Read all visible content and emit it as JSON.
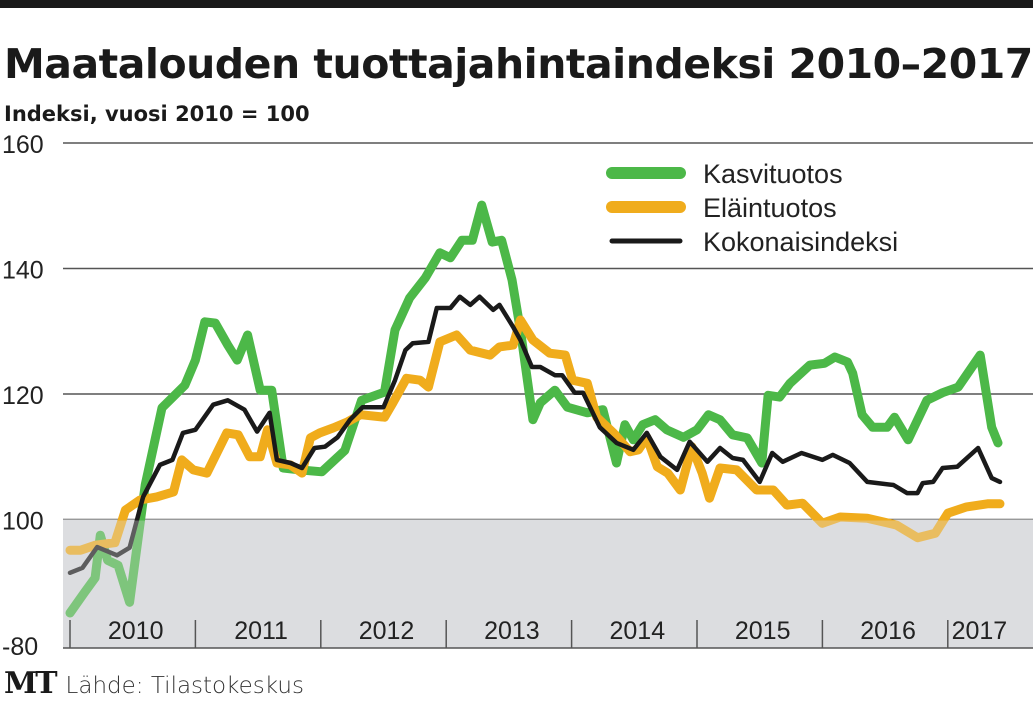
{
  "header": {
    "title": "Maatalouden tuottajahintaindeksi 2010–2017",
    "subtitle": "Indeksi, vuosi 2010 = 100"
  },
  "footer": {
    "logo": "MT",
    "source": "Lähde: Tilastokeskus"
  },
  "chart_data": {
    "type": "line",
    "title": "Maatalouden tuottajahintaindeksi 2010–2017",
    "subtitle": "Indeksi, vuosi 2010 = 100",
    "xlabel": "",
    "ylabel": "",
    "x_units": "months since January 2010",
    "xlim": [
      0,
      92
    ],
    "ylim": [
      80,
      160
    ],
    "yticks": [
      160,
      140,
      120,
      100
    ],
    "ytick_labels": [
      "160",
      "140",
      "120",
      "100"
    ],
    "ybottom_label": "-80",
    "year_labels": [
      "2010",
      "2011",
      "2012",
      "2013",
      "2014",
      "2015",
      "2016",
      "2017"
    ],
    "shaded_below": 100,
    "grid": true,
    "legend_position": "top-right",
    "colors": {
      "shade": "#dcdde0",
      "grid": "#555555"
    },
    "series": [
      {
        "name": "Kasvituotos",
        "color": "#4cb848",
        "points": [
          [
            0,
            85.1
          ],
          [
            1.4,
            88.4
          ],
          [
            2.4,
            90.7
          ],
          [
            2.9,
            97.5
          ],
          [
            3.6,
            93.5
          ],
          [
            4.6,
            92.7
          ],
          [
            5.7,
            86.8
          ],
          [
            7.2,
            105.5
          ],
          [
            8.8,
            117.8
          ],
          [
            11,
            121.4
          ],
          [
            12,
            125.4
          ],
          [
            12.9,
            131.5
          ],
          [
            13.9,
            131.3
          ],
          [
            15.1,
            127.8
          ],
          [
            16,
            125.4
          ],
          [
            17,
            129.4
          ],
          [
            18.2,
            120.6
          ],
          [
            19.3,
            120.6
          ],
          [
            20.4,
            108.2
          ],
          [
            22,
            107.9
          ],
          [
            24.1,
            107.6
          ],
          [
            26.3,
            111
          ],
          [
            27.9,
            119
          ],
          [
            30.1,
            120.3
          ],
          [
            31.1,
            130.2
          ],
          [
            32.5,
            135.3
          ],
          [
            34,
            138.5
          ],
          [
            35.4,
            142.5
          ],
          [
            36.4,
            141.7
          ],
          [
            37.5,
            144.5
          ],
          [
            38.5,
            144.5
          ],
          [
            39.4,
            150.1
          ],
          [
            40.4,
            144.2
          ],
          [
            41.3,
            144.5
          ],
          [
            42.3,
            138.2
          ],
          [
            43.1,
            130.2
          ],
          [
            44.3,
            115.9
          ],
          [
            45,
            118.6
          ],
          [
            46.4,
            120.6
          ],
          [
            47.6,
            117.9
          ],
          [
            49.5,
            117
          ],
          [
            51,
            117.5
          ],
          [
            52.3,
            109
          ],
          [
            53.1,
            115.1
          ],
          [
            53.9,
            112.7
          ],
          [
            54.8,
            115.1
          ],
          [
            56,
            115.9
          ],
          [
            57.1,
            114.3
          ],
          [
            58.7,
            113.1
          ],
          [
            60,
            114.3
          ],
          [
            61.1,
            116.7
          ],
          [
            62.2,
            115.9
          ],
          [
            63.4,
            113.5
          ],
          [
            64.8,
            113
          ],
          [
            66.2,
            109
          ],
          [
            66.8,
            119.8
          ],
          [
            67.9,
            119.5
          ],
          [
            68.9,
            121.7
          ],
          [
            70.8,
            124.6
          ],
          [
            72.2,
            124.9
          ],
          [
            73.2,
            125.9
          ],
          [
            74.4,
            125.1
          ],
          [
            74.9,
            123.3
          ],
          [
            75.8,
            116.7
          ],
          [
            76.8,
            114.7
          ],
          [
            78.2,
            114.7
          ],
          [
            78.9,
            116.3
          ],
          [
            80.2,
            112.7
          ],
          [
            82,
            119
          ],
          [
            83.5,
            120.2
          ],
          [
            85,
            121.1
          ],
          [
            87.1,
            126.2
          ],
          [
            88.2,
            114.7
          ],
          [
            88.8,
            112.2
          ]
        ]
      },
      {
        "name": "Eläintuotos",
        "color": "#f0ac1c",
        "points": [
          [
            0,
            95.1
          ],
          [
            1,
            95.1
          ],
          [
            2.4,
            95.9
          ],
          [
            4.3,
            96.3
          ],
          [
            5.3,
            101.5
          ],
          [
            6.7,
            103.1
          ],
          [
            8.3,
            103.6
          ],
          [
            9.9,
            104.4
          ],
          [
            10.7,
            109.5
          ],
          [
            11.8,
            107.9
          ],
          [
            13.1,
            107.4
          ],
          [
            15,
            113.8
          ],
          [
            16.1,
            113.5
          ],
          [
            17.2,
            110
          ],
          [
            18.2,
            110
          ],
          [
            18.9,
            114.3
          ],
          [
            19.8,
            109
          ],
          [
            21.1,
            108.7
          ],
          [
            22.2,
            107.4
          ],
          [
            23,
            113
          ],
          [
            23.9,
            113.8
          ],
          [
            25.2,
            114.6
          ],
          [
            26.5,
            115.5
          ],
          [
            27.8,
            116.7
          ],
          [
            30.1,
            116.3
          ],
          [
            30.9,
            118.6
          ],
          [
            32.2,
            122.5
          ],
          [
            33.5,
            122.2
          ],
          [
            34.3,
            121.1
          ],
          [
            35.4,
            128.3
          ],
          [
            37,
            129.4
          ],
          [
            38.3,
            127
          ],
          [
            40.2,
            126.2
          ],
          [
            41.1,
            127.5
          ],
          [
            42.4,
            127.8
          ],
          [
            43.1,
            131.8
          ],
          [
            44.3,
            128.6
          ],
          [
            45.9,
            126.5
          ],
          [
            47.4,
            126.2
          ],
          [
            48.1,
            122.2
          ],
          [
            49.5,
            121.7
          ],
          [
            50.4,
            116.3
          ],
          [
            52,
            113.8
          ],
          [
            53.6,
            110.8
          ],
          [
            54.4,
            111.1
          ],
          [
            55.2,
            113.1
          ],
          [
            56.2,
            108.4
          ],
          [
            57.2,
            107.4
          ],
          [
            58.4,
            104.7
          ],
          [
            59.5,
            111.6
          ],
          [
            60.5,
            107.4
          ],
          [
            61.2,
            103.4
          ],
          [
            62.2,
            108.2
          ],
          [
            63.8,
            107.9
          ],
          [
            65.7,
            104.7
          ],
          [
            67.3,
            104.7
          ],
          [
            68.6,
            102.3
          ],
          [
            70.1,
            102.6
          ],
          [
            72,
            99.4
          ],
          [
            73.7,
            100.4
          ],
          [
            76.3,
            100.2
          ],
          [
            79.1,
            99.1
          ],
          [
            81.1,
            97.1
          ],
          [
            82.8,
            97.8
          ],
          [
            84,
            101
          ],
          [
            85.8,
            102
          ],
          [
            87.8,
            102.5
          ],
          [
            89,
            102.5
          ]
        ]
      },
      {
        "name": "Kokonaisindeksi",
        "color": "#1a1a1a",
        "points": [
          [
            0,
            91.5
          ],
          [
            1.2,
            92.3
          ],
          [
            2.6,
            95.6
          ],
          [
            4.5,
            94.3
          ],
          [
            5.7,
            95.5
          ],
          [
            7,
            103.6
          ],
          [
            8.6,
            108.7
          ],
          [
            9.8,
            109.5
          ],
          [
            10.8,
            113.8
          ],
          [
            12,
            114.3
          ],
          [
            13.7,
            118.3
          ],
          [
            15.1,
            119
          ],
          [
            16.7,
            117.5
          ],
          [
            17.9,
            114
          ],
          [
            19.1,
            117
          ],
          [
            19.8,
            109.5
          ],
          [
            21.1,
            109
          ],
          [
            22.2,
            108.2
          ],
          [
            23.4,
            111.4
          ],
          [
            24.4,
            111.6
          ],
          [
            25.6,
            113.1
          ],
          [
            26.8,
            115.9
          ],
          [
            28,
            117.9
          ],
          [
            30,
            117.9
          ],
          [
            31.1,
            122.2
          ],
          [
            32.1,
            127
          ],
          [
            32.8,
            128.1
          ],
          [
            34.3,
            128.3
          ],
          [
            35.1,
            133.7
          ],
          [
            36.4,
            133.7
          ],
          [
            37.3,
            135.5
          ],
          [
            38.3,
            134.2
          ],
          [
            39.2,
            135.5
          ],
          [
            40.5,
            133.4
          ],
          [
            41.1,
            134.2
          ],
          [
            42.4,
            130.7
          ],
          [
            43.1,
            128.6
          ],
          [
            44.2,
            124.3
          ],
          [
            45,
            124.3
          ],
          [
            46.4,
            123
          ],
          [
            47.1,
            123
          ],
          [
            48.3,
            120.2
          ],
          [
            49.1,
            120.2
          ],
          [
            50.7,
            114.7
          ],
          [
            52.3,
            112.2
          ],
          [
            53.9,
            111.1
          ],
          [
            55.2,
            113.8
          ],
          [
            56.5,
            110
          ],
          [
            58.1,
            107.9
          ],
          [
            59.3,
            112.4
          ],
          [
            61,
            109.2
          ],
          [
            62.2,
            111.4
          ],
          [
            63.4,
            109.8
          ],
          [
            64.4,
            109.5
          ],
          [
            66,
            106
          ],
          [
            67.2,
            110.6
          ],
          [
            68.2,
            109.2
          ],
          [
            70,
            110.6
          ],
          [
            72,
            109.5
          ],
          [
            73,
            110.3
          ],
          [
            74.6,
            109
          ],
          [
            76.3,
            106
          ],
          [
            78.8,
            105.5
          ],
          [
            80.1,
            104.2
          ],
          [
            81.1,
            104.2
          ],
          [
            81.6,
            105.8
          ],
          [
            82.6,
            106
          ],
          [
            83.5,
            108.2
          ],
          [
            84.9,
            108.4
          ],
          [
            86.9,
            111.4
          ],
          [
            88.2,
            106.6
          ],
          [
            89,
            106
          ]
        ]
      }
    ]
  }
}
